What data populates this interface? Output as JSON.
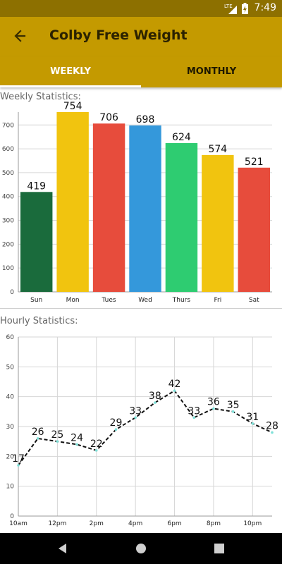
{
  "status_bar": {
    "time": "7:49",
    "network": "LTE"
  },
  "app_bar": {
    "title": "Colby Free Weight"
  },
  "tabs": [
    {
      "label": "WEEKLY",
      "selected": true
    },
    {
      "label": "MONTHLY",
      "selected": false
    }
  ],
  "weekly": {
    "label": "Weekly Statistics:"
  },
  "hourly": {
    "label": "Hourly Statistics:"
  },
  "colors": {
    "app_bar": "#c49a00",
    "status_bar": "#8d7000"
  },
  "chart_data": [
    {
      "type": "bar",
      "categories": [
        "Sun",
        "Mon",
        "Tues",
        "Wed",
        "Thurs",
        "Fri",
        "Sat"
      ],
      "values": [
        419,
        754,
        706,
        698,
        624,
        574,
        521
      ],
      "colors": [
        "#1a6b3c",
        "#f1c40f",
        "#e74c3c",
        "#3498db",
        "#2ecc71",
        "#f1c40f",
        "#e74c3c"
      ],
      "yticks": [
        0,
        100,
        200,
        300,
        400,
        500,
        600,
        700
      ],
      "ylim": [
        0,
        754
      ],
      "grid": true
    },
    {
      "type": "line",
      "x": [
        "10am",
        "11am",
        "12pm",
        "1pm",
        "2pm",
        "3pm",
        "4pm",
        "5pm",
        "6pm",
        "7pm",
        "8pm",
        "9pm",
        "10pm",
        "11pm"
      ],
      "y": [
        17,
        26,
        25,
        24,
        22,
        29,
        33,
        38,
        42,
        33,
        36,
        35,
        31,
        28
      ],
      "xticks": [
        "10am",
        "12pm",
        "2pm",
        "4pm",
        "6pm",
        "8pm",
        "10pm"
      ],
      "yticks": [
        0,
        10,
        20,
        30,
        40,
        50,
        60
      ],
      "ylim": [
        0,
        60
      ],
      "line_style": "dashed",
      "grid": true
    }
  ]
}
